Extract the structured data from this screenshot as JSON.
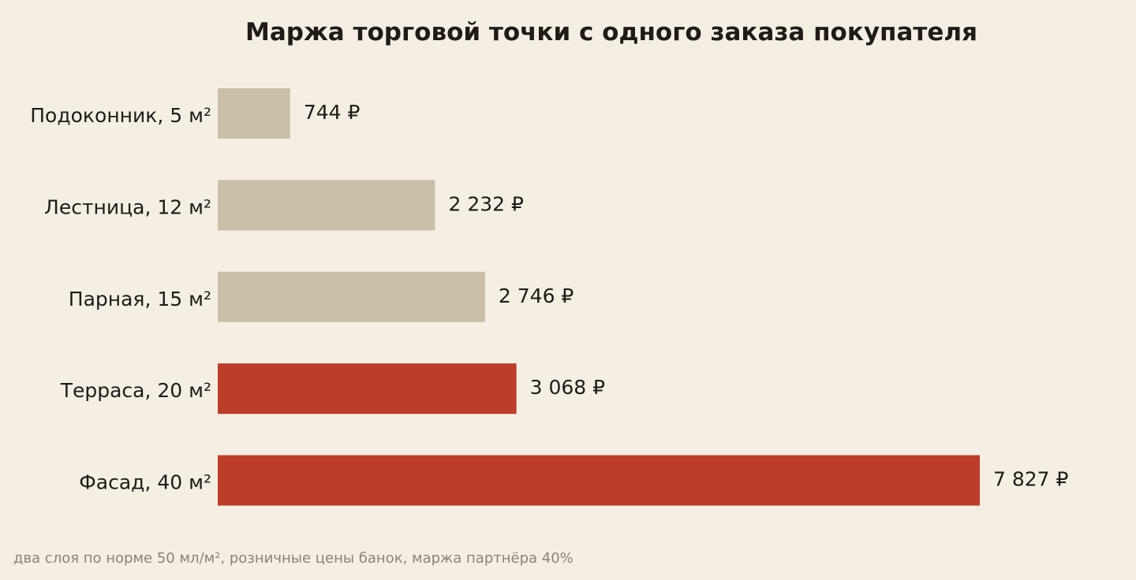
{
  "chart_data": {
    "type": "bar",
    "orientation": "horizontal",
    "title": "Маржа торговой точки с одного заказа покупателя",
    "categories": [
      "Подоконник, 5 м²",
      "Лестница, 12 м²",
      "Парная, 15 м²",
      "Терраса, 20 м²",
      "Фасад, 40 м²"
    ],
    "values": [
      744,
      2232,
      2746,
      3068,
      7827
    ],
    "value_labels": [
      "744 ₽",
      "2 232 ₽",
      "2 746 ₽",
      "3 068 ₽",
      "7 827 ₽"
    ],
    "highlighted": [
      false,
      false,
      false,
      true,
      true
    ],
    "colors": {
      "base": "#c9c0a7",
      "highlight": "#bd3d28",
      "background": "#f5efe3"
    },
    "xlim": [
      0,
      7827
    ],
    "grid": false,
    "xaxis_visible": false
  },
  "footnote": "два слоя по норме 50 мл/м², розничные цены банок, маржа партнёра 40%"
}
